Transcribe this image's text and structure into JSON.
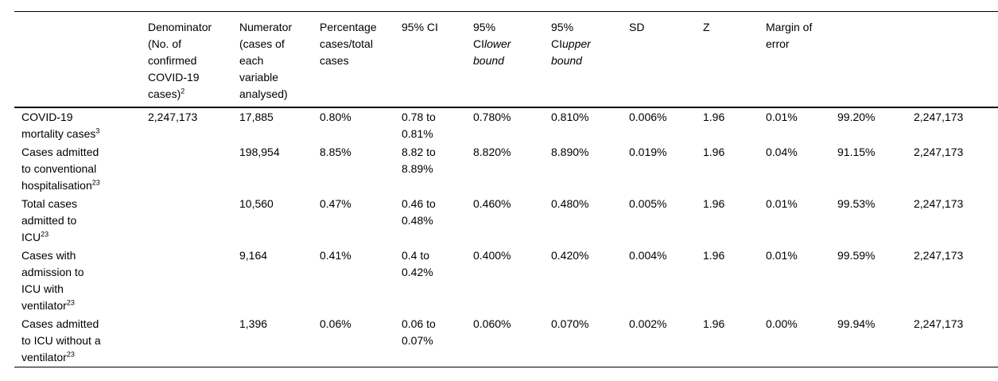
{
  "table": {
    "headers": {
      "variable": "",
      "denominator": {
        "text": "Denominator\n(No. of\nconfirmed\nCOVID-19\ncases)",
        "sup": "2"
      },
      "numerator": "Numerator\n(cases of\neach\nvariable\nanalysed)",
      "percentage": "Percentage\ncases/total\ncases",
      "ci": "95% CI",
      "ci_lower": {
        "text": "95%\nCI",
        "italic": "lower\nbound"
      },
      "ci_upper": {
        "text": "95%\nCI",
        "italic": "upper\nbound"
      },
      "sd": "SD",
      "z": "Z",
      "margin": "Margin of\nerror",
      "extra1": "",
      "extra2": ""
    },
    "rows": [
      {
        "label": "COVID-19\nmortality cases",
        "sup": "3",
        "values": [
          "2,247,173",
          "17,885",
          "0.80%",
          "0.78 to\n0.81%",
          "0.780%",
          "0.810%",
          "0.006%",
          "1.96",
          "0.01%",
          "99.20%",
          "2,247,173"
        ]
      },
      {
        "label": "Cases admitted\nto conventional\nhospitalisation",
        "sup": "23",
        "values": [
          "",
          "198,954",
          "8.85%",
          "8.82 to\n8.89%",
          "8.820%",
          "8.890%",
          "0.019%",
          "1.96",
          "0.04%",
          "91.15%",
          "2,247,173"
        ]
      },
      {
        "label": "Total cases\nadmitted to\nICU",
        "sup": "23",
        "values": [
          "",
          "10,560",
          "0.47%",
          "0.46 to\n0.48%",
          "0.460%",
          "0.480%",
          "0.005%",
          "1.96",
          "0.01%",
          "99.53%",
          "2,247,173"
        ]
      },
      {
        "label": "Cases with\nadmission to\nICU with\nventilator",
        "sup": "23",
        "values": [
          "",
          "9,164",
          "0.41%",
          "0.4 to\n0.42%",
          "0.400%",
          "0.420%",
          "0.004%",
          "1.96",
          "0.01%",
          "99.59%",
          "2,247,173"
        ]
      },
      {
        "label": "Cases admitted\nto ICU without a\nventilator",
        "sup": "23",
        "values": [
          "",
          "1,396",
          "0.06%",
          "0.06 to\n0.07%",
          "0.060%",
          "0.070%",
          "0.002%",
          "1.96",
          "0.00%",
          "99.94%",
          "2,247,173"
        ]
      }
    ]
  }
}
